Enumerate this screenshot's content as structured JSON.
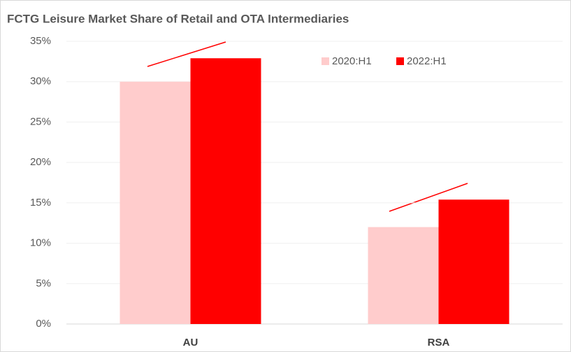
{
  "chart_data": {
    "type": "bar",
    "title": "FCTG Leisure Market Share of Retail and OTA Intermediaries",
    "categories": [
      "AU",
      "RSA"
    ],
    "series": [
      {
        "name": "2020:H1",
        "color": "#ffcccc",
        "values": [
          30,
          12
        ]
      },
      {
        "name": "2022:H1",
        "color": "#ff0000",
        "values": [
          32.9,
          15.4
        ]
      }
    ],
    "ylim": [
      0,
      35
    ],
    "yticks": [
      {
        "value": 0,
        "label": "0%"
      },
      {
        "value": 5,
        "label": "5%"
      },
      {
        "value": 10,
        "label": "10%"
      },
      {
        "value": 15,
        "label": "15%"
      },
      {
        "value": 20,
        "label": "20%"
      },
      {
        "value": 25,
        "label": "25%"
      },
      {
        "value": 30,
        "label": "30%"
      },
      {
        "value": 35,
        "label": "35%"
      }
    ],
    "grid": true,
    "legend": "top-right"
  }
}
